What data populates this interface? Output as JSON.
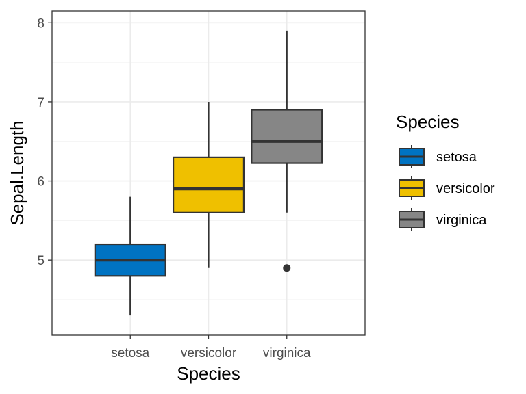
{
  "chart_data": {
    "type": "boxplot",
    "xlabel": "Species",
    "ylabel": "Sepal.Length",
    "ylim": [
      4.05,
      8.15
    ],
    "yticks": [
      5,
      6,
      7,
      8
    ],
    "ytick_labels": [
      "5",
      "6",
      "7",
      "8"
    ],
    "grid": true,
    "legend_title": "Species",
    "legend_position": "right",
    "categories": [
      "setosa",
      "versicolor",
      "virginica"
    ],
    "boxes": [
      {
        "category": "setosa",
        "color": "#0073C2",
        "whisker_low": 4.3,
        "q1": 4.8,
        "median": 5.0,
        "q3": 5.2,
        "whisker_high": 5.8,
        "outliers": []
      },
      {
        "category": "versicolor",
        "color": "#EFC000",
        "whisker_low": 4.9,
        "q1": 5.6,
        "median": 5.9,
        "q3": 6.3,
        "whisker_high": 7.0,
        "outliers": []
      },
      {
        "category": "virginica",
        "color": "#868686",
        "whisker_low": 5.6,
        "q1": 6.225,
        "median": 6.5,
        "q3": 6.9,
        "whisker_high": 7.9,
        "outliers": [
          4.9
        ]
      }
    ]
  }
}
